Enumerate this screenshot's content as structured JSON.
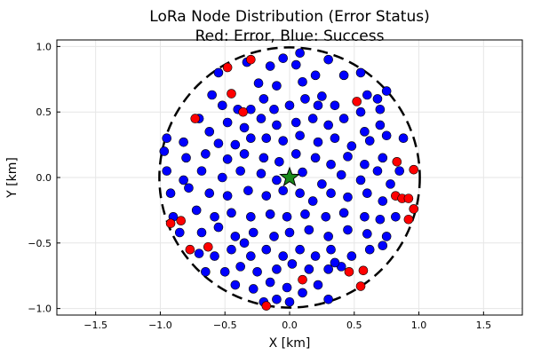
{
  "chart_data": {
    "type": "scatter",
    "title": "LoRa Node Distribution (Error Status)",
    "subtitle": "Red: Error, Blue: Success",
    "xlabel": "X [km]",
    "ylabel": "Y [km]",
    "xlim": [
      -1.8,
      1.8
    ],
    "ylim": [
      -1.05,
      1.05
    ],
    "xticks": [
      -1.5,
      -1.0,
      -0.5,
      0.0,
      0.5,
      1.0,
      1.5
    ],
    "xtick_labels": [
      "−1.5",
      "−1.0",
      "−0.5",
      "0.0",
      "0.5",
      "1.0",
      "1.5"
    ],
    "yticks": [
      -1.0,
      -0.5,
      0.0,
      0.5,
      1.0
    ],
    "ytick_labels": [
      "−1.0",
      "−0.5",
      "0.0",
      "0.5",
      "1.0"
    ],
    "grid": true,
    "legend": "none",
    "colors": {
      "error": "#ff0000",
      "success": "#0000ff",
      "gateway": "#1a8a1a",
      "boundary": "#000000"
    },
    "boundary_circle": {
      "center": [
        0,
        0
      ],
      "radius": 1.0,
      "style": "dashed"
    },
    "gateway": {
      "marker": "star",
      "x": 0.0,
      "y": 0.0
    },
    "series": [
      {
        "status": "error",
        "points": [
          [
            -0.48,
            0.84
          ],
          [
            -0.3,
            0.9
          ],
          [
            -0.45,
            0.64
          ],
          [
            -0.73,
            0.45
          ],
          [
            -0.36,
            0.5
          ],
          [
            0.52,
            0.58
          ],
          [
            0.83,
            0.12
          ],
          [
            0.96,
            0.06
          ],
          [
            -0.92,
            -0.35
          ],
          [
            -0.84,
            -0.33
          ],
          [
            -0.77,
            -0.55
          ],
          [
            -0.63,
            -0.53
          ],
          [
            0.82,
            -0.14
          ],
          [
            0.87,
            -0.16
          ],
          [
            0.92,
            -0.16
          ],
          [
            0.96,
            -0.24
          ],
          [
            0.92,
            -0.32
          ],
          [
            0.46,
            -0.72
          ],
          [
            0.57,
            -0.71
          ],
          [
            0.55,
            -0.83
          ],
          [
            0.1,
            -0.78
          ],
          [
            -0.18,
            -0.98
          ]
        ]
      },
      {
        "status": "success",
        "points": [
          [
            -0.33,
            0.88
          ],
          [
            -0.24,
            0.72
          ],
          [
            -0.15,
            0.85
          ],
          [
            -0.05,
            0.91
          ],
          [
            0.05,
            0.86
          ],
          [
            0.2,
            0.78
          ],
          [
            0.3,
            0.9
          ],
          [
            0.42,
            0.78
          ],
          [
            -0.1,
            0.7
          ],
          [
            0.1,
            0.73
          ],
          [
            -0.6,
            0.63
          ],
          [
            -0.52,
            0.55
          ],
          [
            -0.4,
            0.52
          ],
          [
            -0.3,
            0.52
          ],
          [
            -0.2,
            0.6
          ],
          [
            -0.12,
            0.52
          ],
          [
            0.0,
            0.55
          ],
          [
            0.12,
            0.6
          ],
          [
            0.25,
            0.62
          ],
          [
            0.35,
            0.55
          ],
          [
            0.55,
            0.5
          ],
          [
            0.6,
            0.63
          ],
          [
            0.68,
            0.6
          ],
          [
            0.75,
            0.66
          ],
          [
            0.7,
            0.52
          ],
          [
            -0.7,
            0.45
          ],
          [
            -0.62,
            0.35
          ],
          [
            -0.48,
            0.42
          ],
          [
            -0.35,
            0.38
          ],
          [
            -0.22,
            0.45
          ],
          [
            -0.1,
            0.4
          ],
          [
            0.05,
            0.42
          ],
          [
            0.18,
            0.45
          ],
          [
            0.3,
            0.4
          ],
          [
            0.42,
            0.45
          ],
          [
            0.58,
            0.35
          ],
          [
            0.7,
            0.4
          ],
          [
            -0.95,
            0.3
          ],
          [
            -0.82,
            0.27
          ],
          [
            -0.55,
            0.26
          ],
          [
            -0.42,
            0.25
          ],
          [
            -0.3,
            0.3
          ],
          [
            -0.18,
            0.3
          ],
          [
            -0.05,
            0.28
          ],
          [
            0.08,
            0.32
          ],
          [
            0.22,
            0.27
          ],
          [
            0.35,
            0.3
          ],
          [
            0.48,
            0.24
          ],
          [
            0.62,
            0.28
          ],
          [
            0.75,
            0.32
          ],
          [
            0.88,
            0.3
          ],
          [
            -0.97,
            0.2
          ],
          [
            -0.8,
            0.15
          ],
          [
            -0.65,
            0.18
          ],
          [
            -0.48,
            0.14
          ],
          [
            -0.35,
            0.18
          ],
          [
            -0.2,
            0.15
          ],
          [
            -0.08,
            0.12
          ],
          [
            0.05,
            0.18
          ],
          [
            0.2,
            0.15
          ],
          [
            0.32,
            0.1
          ],
          [
            0.45,
            0.16
          ],
          [
            0.58,
            0.1
          ],
          [
            0.72,
            0.15
          ],
          [
            0.85,
            0.05
          ],
          [
            -0.95,
            0.05
          ],
          [
            -0.82,
            -0.02
          ],
          [
            -0.68,
            0.05
          ],
          [
            -0.52,
            0.0
          ],
          [
            -0.38,
            0.05
          ],
          [
            -0.22,
            0.03
          ],
          [
            -0.1,
            -0.02
          ],
          [
            0.1,
            0.04
          ],
          [
            0.25,
            -0.05
          ],
          [
            0.4,
            0.02
          ],
          [
            0.55,
            -0.02
          ],
          [
            0.68,
            0.05
          ],
          [
            0.78,
            -0.05
          ],
          [
            -0.92,
            -0.12
          ],
          [
            -0.78,
            -0.08
          ],
          [
            -0.62,
            -0.12
          ],
          [
            -0.48,
            -0.14
          ],
          [
            -0.32,
            -0.1
          ],
          [
            -0.18,
            -0.14
          ],
          [
            -0.05,
            -0.1
          ],
          [
            0.08,
            -0.12
          ],
          [
            0.18,
            -0.18
          ],
          [
            0.32,
            -0.12
          ],
          [
            0.45,
            -0.15
          ],
          [
            0.6,
            -0.12
          ],
          [
            0.72,
            -0.18
          ],
          [
            -0.9,
            -0.3
          ],
          [
            -0.72,
            -0.25
          ],
          [
            -0.58,
            -0.3
          ],
          [
            -0.45,
            -0.27
          ],
          [
            -0.3,
            -0.3
          ],
          [
            -0.15,
            -0.28
          ],
          [
            -0.02,
            -0.3
          ],
          [
            0.12,
            -0.28
          ],
          [
            0.28,
            -0.3
          ],
          [
            0.42,
            -0.27
          ],
          [
            0.58,
            -0.3
          ],
          [
            0.7,
            -0.32
          ],
          [
            0.82,
            -0.3
          ],
          [
            -0.85,
            -0.42
          ],
          [
            -0.68,
            -0.42
          ],
          [
            -0.55,
            -0.38
          ],
          [
            -0.42,
            -0.45
          ],
          [
            -0.28,
            -0.42
          ],
          [
            -0.12,
            -0.45
          ],
          [
            0.0,
            -0.42
          ],
          [
            0.15,
            -0.4
          ],
          [
            0.3,
            -0.45
          ],
          [
            0.45,
            -0.4
          ],
          [
            0.6,
            -0.43
          ],
          [
            0.75,
            -0.45
          ],
          [
            -0.7,
            -0.58
          ],
          [
            -0.58,
            -0.6
          ],
          [
            -0.45,
            -0.55
          ],
          [
            -0.3,
            -0.6
          ],
          [
            -0.18,
            -0.55
          ],
          [
            -0.05,
            -0.6
          ],
          [
            0.08,
            -0.55
          ],
          [
            0.2,
            -0.6
          ],
          [
            0.32,
            -0.55
          ],
          [
            0.48,
            -0.6
          ],
          [
            0.62,
            -0.55
          ],
          [
            0.72,
            -0.52
          ],
          [
            -0.65,
            -0.72
          ],
          [
            -0.5,
            -0.72
          ],
          [
            -0.38,
            -0.68
          ],
          [
            -0.25,
            -0.72
          ],
          [
            -0.1,
            -0.7
          ],
          [
            0.02,
            -0.66
          ],
          [
            0.15,
            -0.7
          ],
          [
            0.3,
            -0.7
          ],
          [
            0.4,
            -0.68
          ],
          [
            -0.42,
            -0.82
          ],
          [
            -0.28,
            -0.85
          ],
          [
            -0.15,
            -0.8
          ],
          [
            -0.02,
            -0.84
          ],
          [
            0.1,
            -0.88
          ],
          [
            0.22,
            -0.82
          ],
          [
            -0.1,
            -0.93
          ],
          [
            0.0,
            -0.95
          ],
          [
            0.3,
            -0.93
          ],
          [
            -0.2,
            -0.95
          ],
          [
            0.35,
            -0.65
          ],
          [
            -0.35,
            -0.5
          ],
          [
            0.55,
            0.8
          ],
          [
            0.08,
            0.95
          ],
          [
            -0.55,
            0.8
          ],
          [
            0.22,
            0.55
          ]
        ]
      }
    ]
  }
}
